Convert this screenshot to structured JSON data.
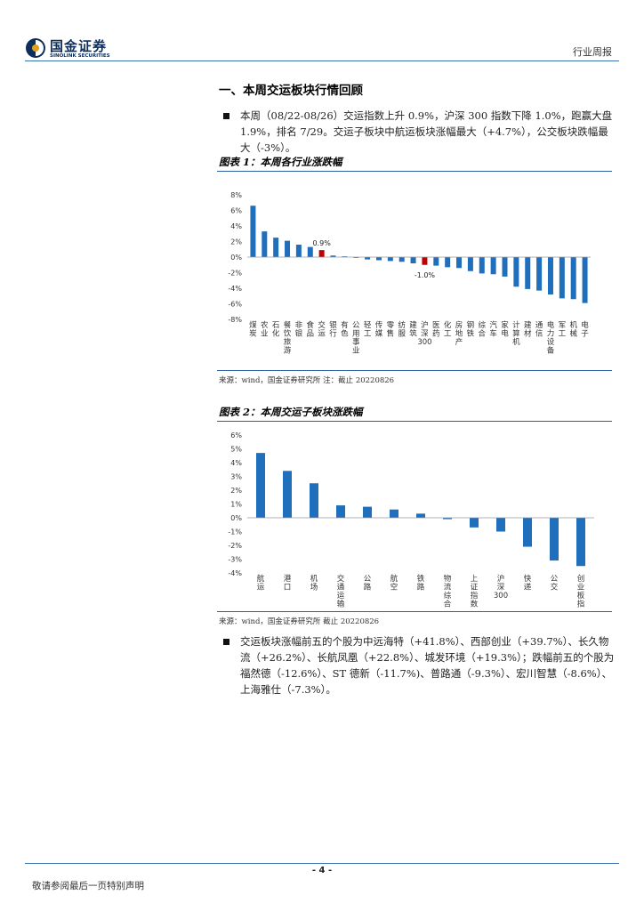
{
  "header": {
    "logo_cn": "国金证券",
    "logo_en": "SINOLINK SECURITIES",
    "doc_type": "行业周报"
  },
  "section": {
    "title": "一、本周交运板块行情回顾",
    "para1": "本周（08/22-08/26）交运指数上升 0.9%，沪深 300 指数下降 1.0%，跑赢大盘 1.9%，排名 7/29。交运子板块中航运板块涨幅最大（+4.7%），公交板块跌幅最大（-3%）。",
    "para2": "交运板块涨幅前五的个股为中远海特（+41.8%）、西部创业（+39.7%）、长久物流（+26.2%）、长航凤凰（+22.8%）、城发环境（+19.3%）；跌幅前五的个股为福然德（-12.6%）、ST 德新（-11.7%)、普路通（-9.3%）、宏川智慧（-8.6%）、上海雅仕（-7.3%）。"
  },
  "figures": [
    {
      "title": "图表 1：本周各行业涨跌幅",
      "source": "来源：wind，国金证券研究所 注：截止 20220826"
    },
    {
      "title": "图表 2：本周交运子板块涨跌幅",
      "source": "来源：wind，国金证券研究所 截止 20220826"
    }
  ],
  "chart_data": [
    {
      "type": "bar",
      "categories": [
        "煤炭",
        "农业",
        "石化",
        "餐饮旅游",
        "非银",
        "食品",
        "交运",
        "银行",
        "有色",
        "公用事业",
        "轻工",
        "传媒",
        "零售",
        "纺服",
        "建筑",
        "沪深300",
        "医药",
        "化工",
        "房地产",
        "钢铁",
        "综合",
        "汽车",
        "家电",
        "计算机",
        "建材",
        "通信",
        "电力设备",
        "军工",
        "机械",
        "电子"
      ],
      "values": [
        6.6,
        3.3,
        2.5,
        2.1,
        1.6,
        1.3,
        0.9,
        0.2,
        0.1,
        -0.1,
        -0.3,
        -0.4,
        -0.5,
        -0.6,
        -0.8,
        -1.0,
        -1.1,
        -1.3,
        -1.4,
        -1.8,
        -2.1,
        -2.2,
        -2.5,
        -3.8,
        -4.1,
        -4.3,
        -4.8,
        -5.3,
        -5.4,
        -5.9
      ],
      "highlight": [
        "交运",
        "沪深300"
      ],
      "data_labels": [
        {
          "category": "交运",
          "text": "0.9%"
        },
        {
          "category": "沪深300",
          "text": "-1.0%"
        }
      ],
      "yticks": [
        "8%",
        "6%",
        "4%",
        "2%",
        "0%",
        "-2%",
        "-4%",
        "-6%",
        "-8%"
      ],
      "ylim": [
        -8,
        8
      ],
      "colors": {
        "bar": "#1f6fbd",
        "highlight": "#c00000"
      },
      "title": "",
      "xlabel": "",
      "ylabel": ""
    },
    {
      "type": "bar",
      "categories": [
        "航运",
        "港口",
        "机场",
        "交通运输",
        "公路",
        "航空",
        "铁路",
        "物流综合",
        "上证指数",
        "沪深300",
        "快递",
        "公交",
        "创业板指"
      ],
      "values": [
        4.7,
        3.4,
        2.5,
        0.9,
        0.8,
        0.6,
        0.3,
        -0.1,
        -0.7,
        -1.0,
        -2.1,
        -3.1,
        -3.5
      ],
      "yticks": [
        "6%",
        "5%",
        "4%",
        "3%",
        "2%",
        "1%",
        "0%",
        "-1%",
        "-2%",
        "-3%",
        "-4%"
      ],
      "ylim": [
        -4,
        6
      ],
      "colors": {
        "bar": "#1f6fbd"
      },
      "title": "",
      "xlabel": "",
      "ylabel": ""
    }
  ],
  "footer": {
    "page_num": "- 4 -",
    "disclaimer": "敬请参阅最后一页特别声明"
  }
}
